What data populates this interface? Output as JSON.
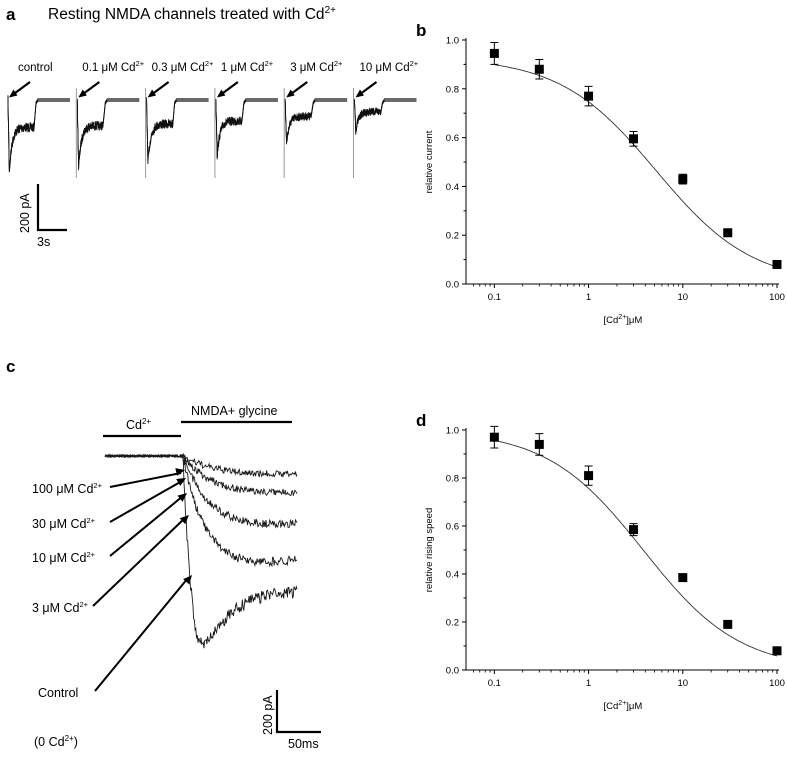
{
  "panels": {
    "a": {
      "label": "a",
      "title": {
        "text": "Resting NMDA channels treated with Cd",
        "sup": "2+"
      },
      "conditions": [
        {
          "pre": "control",
          "sup": ""
        },
        {
          "pre": "0.1 μM Cd",
          "sup": "2+"
        },
        {
          "pre": "0.3 μM Cd",
          "sup": "2+"
        },
        {
          "pre": "1 μM Cd",
          "sup": "2+"
        },
        {
          "pre": "3 μM Cd",
          "sup": "2+"
        },
        {
          "pre": "10 μM Cd",
          "sup": "2+"
        }
      ],
      "peak_relative": [
        1.0,
        0.94,
        0.88,
        0.77,
        0.6,
        0.43
      ],
      "scale_y": "200 pA",
      "scale_x": "3s"
    },
    "c": {
      "label": "c",
      "bar1": {
        "text": "Cd",
        "sup": "2+"
      },
      "bar2": "NMDA+ glycine",
      "traces": [
        {
          "pre": "100 μM Cd",
          "sup": "2+",
          "post": "",
          "peak": 0.09
        },
        {
          "pre": "30 μM Cd",
          "sup": "2+",
          "post": "",
          "peak": 0.18
        },
        {
          "pre": "10 μM Cd",
          "sup": "2+",
          "post": "",
          "peak": 0.33
        },
        {
          "pre": "3 μM Cd",
          "sup": "2+",
          "post": "",
          "peak": 0.5
        },
        {
          "pre": "Control",
          "sup": "",
          "post": "",
          "peak": 1.0
        }
      ],
      "control_sub": {
        "pre": "(0 Cd",
        "sup": "2+",
        "post": ")"
      },
      "scale_y": "200 pA",
      "scale_x": "50ms"
    }
  },
  "chart_data": [
    {
      "panel": "b",
      "label": "b",
      "type": "scatter",
      "x_scale": "log",
      "xlim": [
        0.05,
        100
      ],
      "ylim": [
        0,
        1.0
      ],
      "xticks": [
        "0.1",
        "1",
        "10",
        "100"
      ],
      "yticks": [
        "0.0",
        "0.2",
        "0.4",
        "0.6",
        "0.8",
        "1.0"
      ],
      "xlabel": {
        "pre": "[Cd",
        "sup": "2+",
        "post": "]μM"
      },
      "ylabel": "relative current",
      "x": [
        0.1,
        0.3,
        1,
        3,
        10,
        30,
        100
      ],
      "y": [
        0.945,
        0.88,
        0.77,
        0.595,
        0.43,
        0.21,
        0.08
      ],
      "err": [
        0.045,
        0.04,
        0.04,
        0.03,
        0.02,
        0.012,
        0.01
      ],
      "fit": {
        "type": "hill",
        "top": 0.93,
        "ic50": 5.2,
        "n": 0.85
      },
      "grid": false,
      "legend": "none"
    },
    {
      "panel": "d",
      "label": "d",
      "type": "scatter",
      "x_scale": "log",
      "xlim": [
        0.05,
        100
      ],
      "ylim": [
        0,
        1.0
      ],
      "xticks": [
        "0.1",
        "1",
        "10",
        "100"
      ],
      "yticks": [
        "0.0",
        "0.2",
        "0.4",
        "0.6",
        "0.8",
        "1.0"
      ],
      "xlabel": {
        "pre": "[Cd",
        "sup": "2+",
        "post": "]μM"
      },
      "ylabel": "relative rising speed",
      "x": [
        0.1,
        0.3,
        1,
        3,
        10,
        30,
        100
      ],
      "y": [
        0.97,
        0.94,
        0.81,
        0.585,
        0.385,
        0.19,
        0.08
      ],
      "err": [
        0.045,
        0.045,
        0.04,
        0.025,
        0.015,
        0.012,
        0.01
      ],
      "fit": {
        "type": "hill",
        "top": 1.0,
        "ic50": 3.8,
        "n": 0.85
      },
      "grid": false,
      "legend": "none"
    }
  ]
}
